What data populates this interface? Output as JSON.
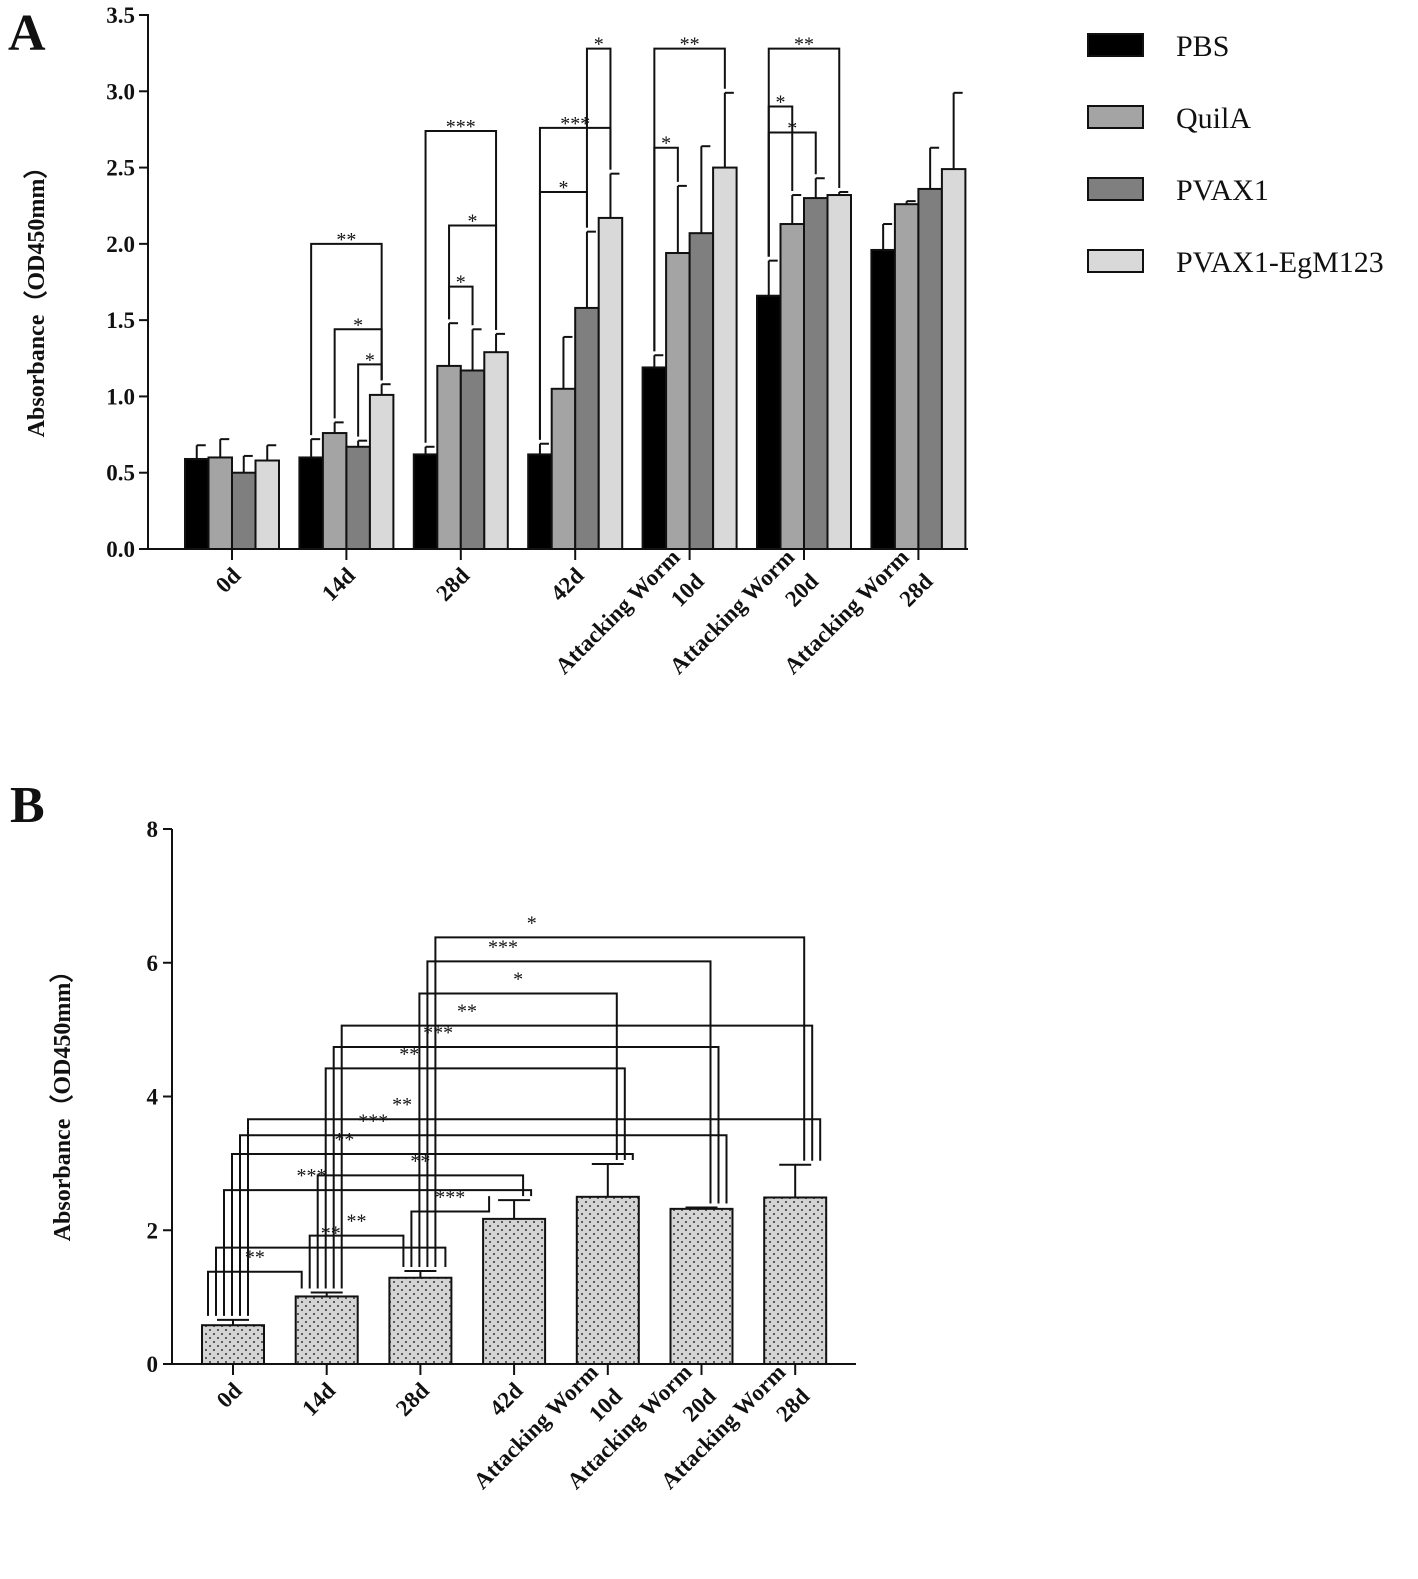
{
  "panels": [
    {
      "letter": "A"
    },
    {
      "letter": "B"
    }
  ],
  "chart_data": [
    {
      "type": "bar",
      "panel": "A",
      "ylabel": "Absorbance（OD450mm）",
      "ylim": [
        0,
        3.5
      ],
      "yticks": [
        "0.0",
        "0.5",
        "1.0",
        "1.5",
        "2.0",
        "2.5",
        "3.0",
        "3.5"
      ],
      "categories": [
        [
          "0d"
        ],
        [
          "14d"
        ],
        [
          "28d"
        ],
        [
          "42d"
        ],
        [
          "Attacking Worm",
          "10d"
        ],
        [
          "Attacking Worm",
          "20d"
        ],
        [
          "Attacking Worm",
          "28d"
        ]
      ],
      "series": [
        {
          "name": "PBS",
          "color": "#000000",
          "values": [
            0.59,
            0.6,
            0.62,
            0.62,
            1.19,
            1.66,
            1.96
          ],
          "errors": [
            0.09,
            0.12,
            0.05,
            0.07,
            0.08,
            0.23,
            0.17
          ]
        },
        {
          "name": "QuilA",
          "color": "#a4a4a4",
          "values": [
            0.6,
            0.76,
            1.2,
            1.05,
            1.94,
            2.13,
            2.26
          ],
          "errors": [
            0.12,
            0.07,
            0.28,
            0.34,
            0.44,
            0.19,
            0.02
          ]
        },
        {
          "name": "PVAX1",
          "color": "#7f7f7f",
          "values": [
            0.5,
            0.67,
            1.17,
            1.58,
            2.07,
            2.3,
            2.36
          ],
          "errors": [
            0.11,
            0.04,
            0.27,
            0.5,
            0.57,
            0.13,
            0.27
          ]
        },
        {
          "name": "PVAX1-EgM123",
          "color": "#d9d9d9",
          "values": [
            0.58,
            1.01,
            1.29,
            2.17,
            2.5,
            2.32,
            2.49
          ],
          "errors": [
            0.1,
            0.07,
            0.12,
            0.29,
            0.49,
            0.02,
            0.5
          ]
        }
      ],
      "significance": [
        {
          "label": "**",
          "group": 1,
          "from": 0,
          "to": 3,
          "level": 2.0
        },
        {
          "label": "*",
          "group": 1,
          "from": 1,
          "to": 3,
          "level": 1.44
        },
        {
          "label": "*",
          "group": 1,
          "from": 2,
          "to": 3,
          "level": 1.21
        },
        {
          "label": "***",
          "group": 2,
          "from": 0,
          "to": 3,
          "level": 2.74
        },
        {
          "label": "*",
          "group": 2,
          "from": 1,
          "to": 3,
          "level": 2.12
        },
        {
          "label": "*",
          "group": 2,
          "from": 1,
          "to": 2,
          "level": 1.72
        },
        {
          "label": "*",
          "group": 3,
          "from": 2,
          "to": 3,
          "level": 3.28
        },
        {
          "label": "***",
          "group": 3,
          "from": 0,
          "to": 3,
          "level": 2.76
        },
        {
          "label": "*",
          "group": 3,
          "from": 0,
          "to": 2,
          "level": 2.34
        },
        {
          "label": "**",
          "group": 4,
          "from": 0,
          "to": 3,
          "level": 3.28
        },
        {
          "label": "*",
          "group": 4,
          "from": 0,
          "to": 1,
          "level": 2.63
        },
        {
          "label": "**",
          "group": 5,
          "from": 0,
          "to": 3,
          "level": 3.28
        },
        {
          "label": "*",
          "group": 5,
          "from": 0,
          "to": 1,
          "level": 2.9
        },
        {
          "label": "*",
          "group": 5,
          "from": 0,
          "to": 2,
          "level": 2.73
        }
      ]
    },
    {
      "type": "bar",
      "panel": "B",
      "ylabel": "Absorbance（OD450mm）",
      "ylim": [
        0,
        8
      ],
      "yticks": [
        "0",
        "2",
        "4",
        "6",
        "8"
      ],
      "categories": [
        [
          "0d"
        ],
        [
          "14d"
        ],
        [
          "28d"
        ],
        [
          "42d"
        ],
        [
          "Attacking Worm",
          "10d"
        ],
        [
          "Attacking Worm",
          "20d"
        ],
        [
          "Attacking Worm",
          "28d"
        ]
      ],
      "values": [
        0.58,
        1.01,
        1.29,
        2.17,
        2.5,
        2.32,
        2.49
      ],
      "errors": [
        0.08,
        0.06,
        0.1,
        0.28,
        0.49,
        0.02,
        0.49
      ],
      "pattern": "dotted grey",
      "significance": [
        {
          "label": "**",
          "from": 0,
          "to": 1,
          "level": 1.38
        },
        {
          "label": "**",
          "from": 0,
          "to": 2,
          "level": 1.74
        },
        {
          "label": "**",
          "from": 1,
          "to": 2,
          "level": 1.92
        },
        {
          "label": "***",
          "from": 2,
          "to": 3,
          "level": 2.28
        },
        {
          "label": "***",
          "from": 0,
          "to": 3,
          "level": 2.6
        },
        {
          "label": "**",
          "from": 1,
          "to": 3,
          "level": 2.82
        },
        {
          "label": "**",
          "from": 0,
          "to": 4,
          "level": 3.14
        },
        {
          "label": "***",
          "from": 0,
          "to": 5,
          "level": 3.42
        },
        {
          "label": "**",
          "from": 0,
          "to": 6,
          "level": 3.66
        },
        {
          "label": "**",
          "from": 1,
          "to": 4,
          "level": 4.42
        },
        {
          "label": "***",
          "from": 1,
          "to": 5,
          "level": 4.74
        },
        {
          "label": "**",
          "from": 1,
          "to": 6,
          "level": 5.06
        },
        {
          "label": "*",
          "from": 2,
          "to": 4,
          "level": 5.54
        },
        {
          "label": "***",
          "from": 2,
          "to": 5,
          "level": 6.02
        },
        {
          "label": "*",
          "from": 2,
          "to": 6,
          "level": 6.38
        }
      ]
    }
  ]
}
